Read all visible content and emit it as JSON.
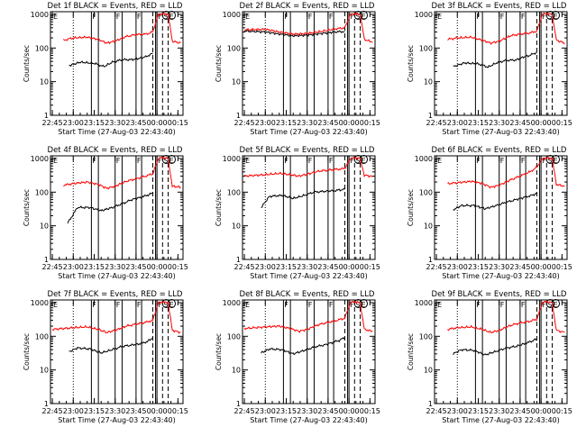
{
  "figure": {
    "xlabel": "Start Time (27-Aug-03 22:43:40)",
    "ylabel": "Counts/sec"
  },
  "colors": {
    "events": "#000000",
    "lld": "#ff0000",
    "axis": "#000000"
  },
  "chart_data": [
    {
      "type": "line",
      "title": "Det 1f  BLACK = Events, RED = LLD",
      "xlabel": "Start Time (27-Aug-03 22:43:40)",
      "ylabel": "Counts/sec",
      "x_ticks": [
        "22:45",
        "23:00",
        "23:15",
        "23:30",
        "23:45",
        "00:00",
        "00:15"
      ],
      "y_ticks": [
        "1",
        "10",
        "100",
        "1000"
      ],
      "ylim": [
        1,
        1200
      ],
      "yscale": "log",
      "marker_labels": [
        {
          "t": "22:45",
          "text": "E"
        },
        {
          "t": "23:13",
          "text": "F"
        },
        {
          "t": "23:30",
          "text": "F"
        },
        {
          "t": "23:45",
          "text": "F"
        },
        {
          "t": "00:00",
          "text": "F"
        },
        {
          "t": "00:04",
          "text": "S"
        },
        {
          "t": "00:08",
          "text": "E"
        }
      ],
      "series": [
        {
          "name": "Events",
          "x": [
            "22:57",
            "23:05",
            "23:15",
            "23:22",
            "23:28",
            "23:35",
            "23:42",
            "23:48",
            "23:52",
            "23:57"
          ],
          "values": [
            30,
            38,
            35,
            28,
            38,
            45,
            45,
            50,
            55,
            70
          ]
        },
        {
          "name": "LLD",
          "x": [
            "22:53",
            "23:00",
            "23:10",
            "23:18",
            "23:24",
            "23:30",
            "23:38",
            "23:45",
            "23:52",
            "23:57",
            "00:01",
            "00:04",
            "00:08",
            "00:11",
            "00:17"
          ],
          "values": [
            170,
            200,
            210,
            180,
            140,
            160,
            220,
            250,
            260,
            300,
            1000,
            1050,
            1000,
            160,
            140
          ]
        }
      ]
    },
    {
      "type": "line",
      "title": "Det 2f  BLACK = Events, RED = LLD",
      "xlabel": "Start Time (27-Aug-03 22:43:40)",
      "ylabel": "Counts/sec",
      "x_ticks": [
        "22:45",
        "23:00",
        "23:15",
        "23:30",
        "23:45",
        "00:00",
        "00:15"
      ],
      "y_ticks": [
        "1",
        "10",
        "100",
        "1000"
      ],
      "ylim": [
        1,
        1200
      ],
      "yscale": "log",
      "marker_labels": [
        {
          "t": "22:45",
          "text": "E"
        },
        {
          "t": "23:13",
          "text": "F"
        },
        {
          "t": "23:30",
          "text": "F"
        },
        {
          "t": "23:45",
          "text": "F"
        },
        {
          "t": "00:00",
          "text": "F"
        },
        {
          "t": "00:04",
          "text": "S"
        },
        {
          "t": "00:08",
          "text": "E"
        }
      ],
      "series": [
        {
          "name": "Events",
          "x": [
            "22:45",
            "23:00",
            "23:10",
            "23:20",
            "23:30",
            "23:40",
            "23:50",
            "23:57"
          ],
          "values": [
            320,
            300,
            260,
            230,
            240,
            270,
            300,
            310
          ]
        },
        {
          "name": "LLD",
          "x": [
            "22:45",
            "23:00",
            "23:10",
            "23:20",
            "23:30",
            "23:40",
            "23:50",
            "23:57",
            "00:01",
            "00:04",
            "00:08",
            "00:11",
            "00:17"
          ],
          "values": [
            350,
            360,
            300,
            260,
            270,
            310,
            370,
            400,
            1000,
            1050,
            1000,
            180,
            150
          ]
        }
      ]
    },
    {
      "type": "line",
      "title": "Det 3f  BLACK = Events, RED = LLD",
      "xlabel": "Start Time (27-Aug-03 22:43:40)",
      "ylabel": "Counts/sec",
      "x_ticks": [
        "22:45",
        "23:00",
        "23:15",
        "23:30",
        "23:45",
        "00:00",
        "00:15"
      ],
      "y_ticks": [
        "1",
        "10",
        "100",
        "1000"
      ],
      "ylim": [
        1,
        1200
      ],
      "yscale": "log",
      "marker_labels": [
        {
          "t": "22:45",
          "text": "E"
        },
        {
          "t": "23:13",
          "text": "F"
        },
        {
          "t": "23:30",
          "text": "F"
        },
        {
          "t": "23:45",
          "text": "F"
        },
        {
          "t": "00:00",
          "text": "F"
        },
        {
          "t": "00:04",
          "text": "S"
        },
        {
          "t": "00:08",
          "text": "E"
        }
      ],
      "series": [
        {
          "name": "Events",
          "x": [
            "22:57",
            "23:05",
            "23:15",
            "23:22",
            "23:28",
            "23:35",
            "23:42",
            "23:48",
            "23:52",
            "23:57"
          ],
          "values": [
            28,
            36,
            34,
            27,
            36,
            43,
            44,
            55,
            60,
            75
          ]
        },
        {
          "name": "LLD",
          "x": [
            "22:53",
            "23:00",
            "23:10",
            "23:18",
            "23:24",
            "23:30",
            "23:38",
            "23:45",
            "23:52",
            "23:57",
            "00:01",
            "00:04",
            "00:08",
            "00:11",
            "00:17"
          ],
          "values": [
            180,
            200,
            210,
            170,
            140,
            160,
            230,
            260,
            280,
            320,
            1000,
            1050,
            1000,
            170,
            140
          ]
        }
      ]
    },
    {
      "type": "line",
      "title": "Det 4f  BLACK = Events, RED = LLD",
      "xlabel": "Start Time (27-Aug-03 22:43:40)",
      "ylabel": "Counts/sec",
      "x_ticks": [
        "22:45",
        "23:00",
        "23:15",
        "23:30",
        "23:45",
        "00:00",
        "00:15"
      ],
      "y_ticks": [
        "1",
        "10",
        "100",
        "1000"
      ],
      "ylim": [
        1,
        1200
      ],
      "yscale": "log",
      "marker_labels": [
        {
          "t": "22:45",
          "text": "E"
        },
        {
          "t": "23:13",
          "text": "F"
        },
        {
          "t": "23:30",
          "text": "F"
        },
        {
          "t": "23:45",
          "text": "F"
        },
        {
          "t": "00:00",
          "text": "F"
        },
        {
          "t": "00:04",
          "text": "S"
        },
        {
          "t": "00:08",
          "text": "E"
        }
      ],
      "series": [
        {
          "name": "Events",
          "x": [
            "22:56",
            "23:03",
            "23:12",
            "23:20",
            "23:28",
            "23:35",
            "23:42",
            "23:48",
            "23:53",
            "23:57"
          ],
          "values": [
            12,
            35,
            35,
            28,
            35,
            45,
            60,
            70,
            80,
            95
          ]
        },
        {
          "name": "LLD",
          "x": [
            "22:53",
            "23:00",
            "23:10",
            "23:18",
            "23:24",
            "23:30",
            "23:38",
            "23:45",
            "23:52",
            "23:57",
            "00:01",
            "00:04",
            "00:08",
            "00:11",
            "00:17"
          ],
          "values": [
            160,
            180,
            200,
            170,
            130,
            150,
            210,
            250,
            300,
            350,
            1000,
            1050,
            1000,
            150,
            140
          ]
        }
      ]
    },
    {
      "type": "line",
      "title": "Det 5f  BLACK = Events, RED = LLD",
      "xlabel": "Start Time (27-Aug-03 22:43:40)",
      "ylabel": "Counts/sec",
      "x_ticks": [
        "22:45",
        "23:00",
        "23:15",
        "23:30",
        "23:45",
        "00:00",
        "00:15"
      ],
      "y_ticks": [
        "1",
        "10",
        "100",
        "1000"
      ],
      "ylim": [
        1,
        1200
      ],
      "yscale": "log",
      "marker_labels": [
        {
          "t": "22:45",
          "text": "E"
        },
        {
          "t": "23:13",
          "text": "F"
        },
        {
          "t": "23:30",
          "text": "F"
        },
        {
          "t": "23:45",
          "text": "F"
        },
        {
          "t": "00:00",
          "text": "F"
        },
        {
          "t": "00:04",
          "text": "S"
        },
        {
          "t": "00:08",
          "text": "E"
        }
      ],
      "series": [
        {
          "name": "Events",
          "x": [
            "22:57",
            "23:03",
            "23:12",
            "23:20",
            "23:28",
            "23:35",
            "23:42",
            "23:48",
            "23:53",
            "23:57"
          ],
          "values": [
            35,
            75,
            80,
            65,
            80,
            100,
            105,
            110,
            115,
            120
          ]
        },
        {
          "name": "LLD",
          "x": [
            "22:45",
            "23:00",
            "23:10",
            "23:18",
            "23:24",
            "23:30",
            "23:38",
            "23:45",
            "23:52",
            "23:57",
            "00:01",
            "00:04",
            "00:08",
            "00:11",
            "00:17"
          ],
          "values": [
            300,
            330,
            360,
            330,
            300,
            340,
            420,
            450,
            480,
            500,
            1000,
            1050,
            1000,
            320,
            290
          ]
        }
      ]
    },
    {
      "type": "line",
      "title": "Det 6f  BLACK = Events, RED = LLD",
      "xlabel": "Start Time (27-Aug-03 22:43:40)",
      "ylabel": "Counts/sec",
      "x_ticks": [
        "22:45",
        "23:00",
        "23:15",
        "23:30",
        "23:45",
        "00:00",
        "00:15"
      ],
      "y_ticks": [
        "1",
        "10",
        "100",
        "1000"
      ],
      "ylim": [
        1,
        1200
      ],
      "yscale": "log",
      "marker_labels": [
        {
          "t": "22:45",
          "text": "E"
        },
        {
          "t": "23:13",
          "text": "F"
        },
        {
          "t": "23:30",
          "text": "F"
        },
        {
          "t": "23:45",
          "text": "F"
        },
        {
          "t": "00:00",
          "text": "F"
        },
        {
          "t": "00:04",
          "text": "S"
        },
        {
          "t": "00:08",
          "text": "E"
        }
      ],
      "series": [
        {
          "name": "Events",
          "x": [
            "22:57",
            "23:03",
            "23:12",
            "23:20",
            "23:28",
            "23:35",
            "23:42",
            "23:48",
            "23:53",
            "23:57"
          ],
          "values": [
            30,
            40,
            40,
            32,
            40,
            50,
            60,
            70,
            80,
            90
          ]
        },
        {
          "name": "LLD",
          "x": [
            "22:53",
            "23:00",
            "23:10",
            "23:18",
            "23:24",
            "23:30",
            "23:38",
            "23:45",
            "23:52",
            "23:57",
            "00:01",
            "00:04",
            "00:08",
            "00:11",
            "00:17"
          ],
          "values": [
            180,
            190,
            210,
            180,
            140,
            160,
            230,
            300,
            400,
            550,
            1000,
            1050,
            1000,
            170,
            150
          ]
        }
      ]
    },
    {
      "type": "line",
      "title": "Det 7f  BLACK = Events, RED = LLD",
      "xlabel": "Start Time (27-Aug-03 22:43:40)",
      "ylabel": "Counts/sec",
      "x_ticks": [
        "22:45",
        "23:00",
        "23:15",
        "23:30",
        "23:45",
        "00:00",
        "00:15"
      ],
      "y_ticks": [
        "1",
        "10",
        "100",
        "1000"
      ],
      "ylim": [
        1,
        1200
      ],
      "yscale": "log",
      "marker_labels": [
        {
          "t": "22:45",
          "text": "E"
        },
        {
          "t": "23:13",
          "text": "F"
        },
        {
          "t": "23:30",
          "text": "F"
        },
        {
          "t": "23:45",
          "text": "F"
        },
        {
          "t": "00:00",
          "text": "F"
        },
        {
          "t": "00:04",
          "text": "S"
        },
        {
          "t": "00:08",
          "text": "E"
        }
      ],
      "series": [
        {
          "name": "Events",
          "x": [
            "22:57",
            "23:03",
            "23:12",
            "23:20",
            "23:28",
            "23:35",
            "23:42",
            "23:48",
            "23:53",
            "23:57"
          ],
          "values": [
            35,
            45,
            42,
            32,
            40,
            50,
            55,
            60,
            70,
            90
          ]
        },
        {
          "name": "LLD",
          "x": [
            "22:45",
            "23:00",
            "23:10",
            "23:18",
            "23:24",
            "23:30",
            "23:38",
            "23:45",
            "23:52",
            "23:57",
            "00:01",
            "00:04",
            "00:08",
            "00:11",
            "00:17"
          ],
          "values": [
            160,
            180,
            190,
            160,
            130,
            150,
            200,
            230,
            260,
            300,
            1000,
            1050,
            1000,
            150,
            130
          ]
        }
      ]
    },
    {
      "type": "line",
      "title": "Det 8f  BLACK = Events, RED = LLD",
      "xlabel": "Start Time (27-Aug-03 22:43:40)",
      "ylabel": "Counts/sec",
      "x_ticks": [
        "22:45",
        "23:00",
        "23:15",
        "23:30",
        "23:45",
        "00:00",
        "00:15"
      ],
      "y_ticks": [
        "1",
        "10",
        "100",
        "1000"
      ],
      "ylim": [
        1,
        1200
      ],
      "yscale": "log",
      "marker_labels": [
        {
          "t": "22:45",
          "text": "E"
        },
        {
          "t": "23:13",
          "text": "F"
        },
        {
          "t": "23:30",
          "text": "F"
        },
        {
          "t": "23:45",
          "text": "F"
        },
        {
          "t": "00:00",
          "text": "F"
        },
        {
          "t": "00:04",
          "text": "S"
        },
        {
          "t": "00:08",
          "text": "E"
        }
      ],
      "series": [
        {
          "name": "Events",
          "x": [
            "22:57",
            "23:03",
            "23:12",
            "23:20",
            "23:28",
            "23:35",
            "23:42",
            "23:48",
            "23:53",
            "23:57"
          ],
          "values": [
            32,
            42,
            40,
            30,
            38,
            48,
            55,
            65,
            75,
            95
          ]
        },
        {
          "name": "LLD",
          "x": [
            "22:45",
            "23:00",
            "23:10",
            "23:18",
            "23:24",
            "23:30",
            "23:38",
            "23:45",
            "23:52",
            "23:57",
            "00:01",
            "00:04",
            "00:08",
            "00:11",
            "00:17"
          ],
          "values": [
            170,
            190,
            200,
            170,
            140,
            160,
            220,
            260,
            300,
            350,
            1000,
            1050,
            1000,
            160,
            140
          ]
        }
      ]
    },
    {
      "type": "line",
      "title": "Det 9f  BLACK = Events, RED = LLD",
      "xlabel": "Start Time (27-Aug-03 22:43:40)",
      "ylabel": "Counts/sec",
      "x_ticks": [
        "22:45",
        "23:00",
        "23:15",
        "23:30",
        "23:45",
        "00:00",
        "00:15"
      ],
      "y_ticks": [
        "1",
        "10",
        "100",
        "1000"
      ],
      "ylim": [
        1,
        1200
      ],
      "yscale": "log",
      "marker_labels": [
        {
          "t": "22:45",
          "text": "E"
        },
        {
          "t": "23:13",
          "text": "F"
        },
        {
          "t": "23:30",
          "text": "F"
        },
        {
          "t": "23:45",
          "text": "F"
        },
        {
          "t": "00:00",
          "text": "F"
        },
        {
          "t": "00:04",
          "text": "S"
        },
        {
          "t": "00:08",
          "text": "E"
        }
      ],
      "series": [
        {
          "name": "Events",
          "x": [
            "22:57",
            "23:03",
            "23:12",
            "23:20",
            "23:28",
            "23:35",
            "23:42",
            "23:48",
            "23:53",
            "23:57"
          ],
          "values": [
            30,
            40,
            38,
            28,
            36,
            45,
            50,
            60,
            70,
            85
          ]
        },
        {
          "name": "LLD",
          "x": [
            "22:53",
            "23:00",
            "23:10",
            "23:18",
            "23:24",
            "23:30",
            "23:38",
            "23:45",
            "23:52",
            "23:57",
            "00:01",
            "00:04",
            "00:08",
            "00:11",
            "00:17"
          ],
          "values": [
            160,
            180,
            190,
            160,
            130,
            150,
            210,
            250,
            280,
            320,
            1000,
            1050,
            1000,
            150,
            130
          ]
        }
      ]
    }
  ]
}
